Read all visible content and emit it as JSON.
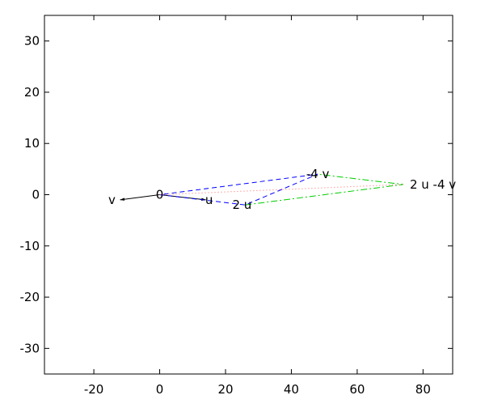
{
  "chart_data": {
    "type": "line",
    "title": "",
    "xlabel": "",
    "ylabel": "",
    "xlim": [
      -35,
      89
    ],
    "ylim": [
      -35,
      35
    ],
    "xticks": [
      -20,
      0,
      20,
      40,
      60,
      80
    ],
    "yticks": [
      -30,
      -20,
      -10,
      0,
      10,
      20,
      30
    ],
    "xtick_labels": [
      "-20",
      "0",
      "20",
      "40",
      "60",
      "80"
    ],
    "ytick_labels": [
      "-30",
      "-20",
      "-10",
      "0",
      "10",
      "20",
      "30"
    ],
    "grid": false,
    "legend": "none",
    "series": [
      {
        "style": "solid-arrow",
        "color": "#000000",
        "x": [
          0,
          14
        ],
        "y": [
          0,
          -1
        ]
      },
      {
        "style": "solid-arrow",
        "color": "#000000",
        "x": [
          0,
          -12
        ],
        "y": [
          0,
          -1
        ]
      },
      {
        "style": "dashed",
        "color": "#0000ff",
        "x": [
          0,
          26,
          48,
          0
        ],
        "y": [
          0,
          -2,
          4,
          0
        ]
      },
      {
        "style": "dash-dot",
        "color": "#00cc00",
        "x": [
          26,
          74,
          48
        ],
        "y": [
          -2,
          2,
          4
        ]
      },
      {
        "style": "dotted",
        "color": "#ff6666",
        "x": [
          0,
          74
        ],
        "y": [
          0,
          2
        ]
      }
    ],
    "annotations": [
      {
        "text": "0",
        "x": 0,
        "y": 0
      },
      {
        "text": "u",
        "x": 15,
        "y": -1
      },
      {
        "text": "v",
        "x": -14.5,
        "y": -1
      },
      {
        "text": "2 u",
        "x": 25,
        "y": -2
      },
      {
        "text": "-4 v",
        "x": 48,
        "y": 4
      },
      {
        "text": "2 u -4 v",
        "x": 83,
        "y": 2
      }
    ]
  }
}
